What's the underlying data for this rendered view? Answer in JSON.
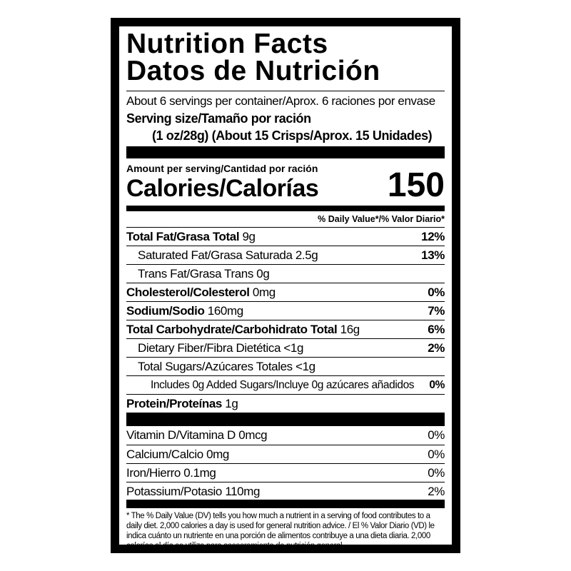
{
  "title_en": "Nutrition Facts",
  "title_es": "Datos de Nutrición",
  "servings": "About 6 servings per container/Aprox. 6 raciones por envase",
  "serving_size_label": "Serving size/Tamaño por ración",
  "serving_size_value": "(1 oz/28g) (About 15 Crisps/Aprox. 15 Unidades)",
  "amount_label": "Amount per serving/Cantidad por ración",
  "calories_label": "Calories/Calorías",
  "calories_value": "150",
  "dv_header": "% Daily Value*/% Valor Diario*",
  "nutrients": [
    {
      "name": "Total Fat/Grasa Total",
      "amount": "9g",
      "dv": "12%"
    },
    {
      "name": "Saturated Fat/Grasa Saturada",
      "amount": "2.5g",
      "dv": "13%"
    },
    {
      "name": "Trans Fat/Grasa Trans",
      "amount": "0g",
      "dv": ""
    },
    {
      "name": "Cholesterol/Colesterol",
      "amount": "0mg",
      "dv": "0%"
    },
    {
      "name": "Sodium/Sodio",
      "amount": "160mg",
      "dv": "7%"
    },
    {
      "name": "Total Carbohydrate/Carbohidrato Total",
      "amount": "16g",
      "dv": "6%"
    },
    {
      "name": "Dietary Fiber/Fibra Dietética",
      "amount": "<1g",
      "dv": "2%"
    },
    {
      "name": "Total Sugars/Azúcares Totales",
      "amount": "<1g",
      "dv": ""
    },
    {
      "name": "Includes 0g Added Sugars/Incluye 0g azúcares añadidos",
      "amount": "",
      "dv": "0%"
    },
    {
      "name": "Protein/Proteínas",
      "amount": "1g",
      "dv": ""
    }
  ],
  "vitamins": [
    {
      "name": "Vitamin D/Vitamina D 0mcg",
      "dv": "0%"
    },
    {
      "name": "Calcium/Calcio 0mg",
      "dv": "0%"
    },
    {
      "name": "Iron/Hierro 0.1mg",
      "dv": "0%"
    },
    {
      "name": "Potassium/Potasio 110mg",
      "dv": "2%"
    }
  ],
  "footnote": "* The % Daily Value (DV) tells you how much a nutrient in a serving of food contributes to a daily diet. 2,000 calories a day is used for general nutrition advice. / El % Valor Diario (VD) le indica cuánto un nutriente en una porción de alimentos contribuye a una dieta diaria. 2,000 calorías al día se utiliza para asesoramiento de nutrición general."
}
